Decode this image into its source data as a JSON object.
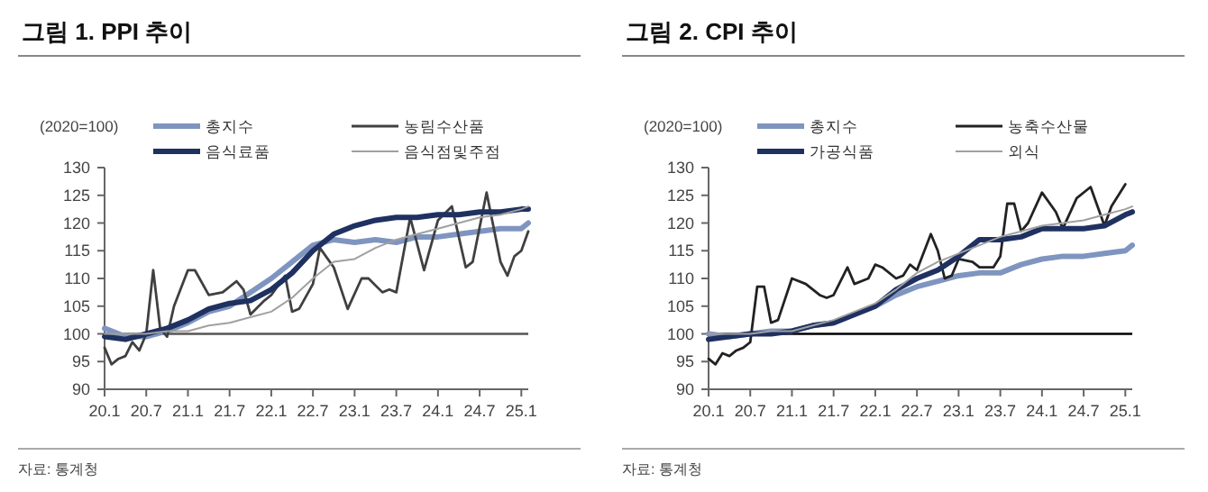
{
  "chart_data": [
    {
      "type": "line",
      "title": "그림 1. PPI 추이",
      "ylabel": "(2020=100)",
      "annotations": [
        "자료: 통계청"
      ],
      "legend": "top",
      "grid": false,
      "xlim": [
        "2020-01",
        "2025-02"
      ],
      "ylim": [
        90,
        130
      ],
      "yticks": [
        90,
        95,
        100,
        105,
        110,
        115,
        120,
        125,
        130
      ],
      "xticks": [
        {
          "value": "2020-01",
          "label": "20.1"
        },
        {
          "value": "2020-07",
          "label": "20.7"
        },
        {
          "value": "2021-01",
          "label": "21.1"
        },
        {
          "value": "2021-07",
          "label": "21.7"
        },
        {
          "value": "2022-01",
          "label": "22.1"
        },
        {
          "value": "2022-07",
          "label": "22.7"
        },
        {
          "value": "2023-01",
          "label": "23.1"
        },
        {
          "value": "2023-07",
          "label": "23.7"
        },
        {
          "value": "2024-01",
          "label": "24.1"
        },
        {
          "value": "2024-07",
          "label": "24.7"
        },
        {
          "value": "2025-01",
          "label": "25.1"
        }
      ],
      "ref_lines": [
        {
          "axis": "y",
          "value": 100,
          "color": "#555555"
        }
      ],
      "series": [
        {
          "name": "총지수",
          "color": "#7f95c0",
          "x": [
            "2020-01",
            "2020-04",
            "2020-07",
            "2020-10",
            "2021-01",
            "2021-04",
            "2021-07",
            "2021-10",
            "2022-01",
            "2022-04",
            "2022-07",
            "2022-10",
            "2023-01",
            "2023-04",
            "2023-07",
            "2023-10",
            "2024-01",
            "2024-04",
            "2024-07",
            "2024-10",
            "2025-01",
            "2025-02"
          ],
          "values": [
            101,
            99.5,
            99.5,
            100.5,
            102,
            104,
            105,
            107.5,
            110,
            113,
            116,
            117,
            116.5,
            117,
            116.5,
            117.5,
            117.5,
            118,
            118.5,
            119,
            119,
            120
          ]
        },
        {
          "name": "농림수산품",
          "color": "#404040",
          "x": [
            "2020-01",
            "2020-02",
            "2020-03",
            "2020-04",
            "2020-05",
            "2020-06",
            "2020-07",
            "2020-08",
            "2020-09",
            "2020-10",
            "2020-11",
            "2021-01",
            "2021-02",
            "2021-04",
            "2021-06",
            "2021-08",
            "2021-09",
            "2021-10",
            "2021-12",
            "2022-01",
            "2022-03",
            "2022-04",
            "2022-05",
            "2022-07",
            "2022-08",
            "2022-10",
            "2022-12",
            "2023-02",
            "2023-03",
            "2023-05",
            "2023-06",
            "2023-07",
            "2023-09",
            "2023-11",
            "2024-01",
            "2024-03",
            "2024-05",
            "2024-06",
            "2024-08",
            "2024-10",
            "2024-11",
            "2024-12",
            "2025-01",
            "2025-02"
          ],
          "values": [
            97.5,
            94.5,
            95.5,
            96,
            98.5,
            97,
            100,
            111.5,
            101,
            99.5,
            105,
            111.5,
            111.5,
            107,
            107.5,
            109.5,
            108,
            103.5,
            106,
            107,
            110.5,
            104,
            104.5,
            109,
            115.5,
            112,
            104.5,
            110,
            110,
            107.5,
            108,
            107.5,
            121,
            111.5,
            120.5,
            123,
            112,
            113,
            125.5,
            113,
            110.5,
            114,
            115,
            118.5
          ]
        },
        {
          "name": "음식료품",
          "color": "#1f3160",
          "x": [
            "2020-01",
            "2020-04",
            "2020-07",
            "2020-10",
            "2021-01",
            "2021-04",
            "2021-07",
            "2021-10",
            "2022-01",
            "2022-04",
            "2022-07",
            "2022-10",
            "2023-01",
            "2023-04",
            "2023-07",
            "2023-10",
            "2024-01",
            "2024-04",
            "2024-07",
            "2024-10",
            "2025-01",
            "2025-02"
          ],
          "values": [
            99.5,
            99,
            100,
            101,
            102.5,
            104.5,
            105.5,
            106,
            108,
            111,
            115,
            118,
            119.5,
            120.5,
            121,
            121,
            121.5,
            121.5,
            122,
            122,
            122.5,
            122.5
          ]
        },
        {
          "name": "음식점및주점",
          "color": "#a0a0a0",
          "x": [
            "2020-01",
            "2020-04",
            "2020-07",
            "2020-10",
            "2021-01",
            "2021-04",
            "2021-07",
            "2021-10",
            "2022-01",
            "2022-04",
            "2022-07",
            "2022-10",
            "2023-01",
            "2023-04",
            "2023-07",
            "2023-10",
            "2024-01",
            "2024-04",
            "2024-07",
            "2024-10",
            "2025-01",
            "2025-02"
          ],
          "values": [
            100,
            100,
            100,
            100.5,
            100.5,
            101.5,
            102,
            103,
            104,
            106.5,
            110,
            113,
            113.5,
            115.5,
            117,
            118,
            119,
            120,
            121,
            121.5,
            122.5,
            123
          ]
        }
      ]
    },
    {
      "type": "line",
      "title": "그림 2. CPI 추이",
      "ylabel": "(2020=100)",
      "annotations": [
        "자료: 통계청"
      ],
      "legend": "top",
      "grid": false,
      "xlim": [
        "2020-01",
        "2025-02"
      ],
      "ylim": [
        90,
        130
      ],
      "yticks": [
        90,
        95,
        100,
        105,
        110,
        115,
        120,
        125,
        130
      ],
      "xticks": [
        {
          "value": "2020-01",
          "label": "20.1"
        },
        {
          "value": "2020-07",
          "label": "20.7"
        },
        {
          "value": "2021-01",
          "label": "21.1"
        },
        {
          "value": "2021-07",
          "label": "21.7"
        },
        {
          "value": "2022-01",
          "label": "22.1"
        },
        {
          "value": "2022-07",
          "label": "22.7"
        },
        {
          "value": "2023-01",
          "label": "23.1"
        },
        {
          "value": "2023-07",
          "label": "23.7"
        },
        {
          "value": "2024-01",
          "label": "24.1"
        },
        {
          "value": "2024-07",
          "label": "24.7"
        },
        {
          "value": "2025-01",
          "label": "25.1"
        }
      ],
      "ref_lines": [
        {
          "axis": "y",
          "value": 100,
          "color": "#000000"
        }
      ],
      "series": [
        {
          "name": "총지수",
          "color": "#7f95c0",
          "x": [
            "2020-01",
            "2020-04",
            "2020-07",
            "2020-10",
            "2021-01",
            "2021-04",
            "2021-07",
            "2021-10",
            "2022-01",
            "2022-04",
            "2022-07",
            "2022-10",
            "2023-01",
            "2023-04",
            "2023-07",
            "2023-10",
            "2024-01",
            "2024-04",
            "2024-07",
            "2024-10",
            "2025-01",
            "2025-02"
          ],
          "values": [
            100,
            99.5,
            100,
            100.5,
            100.5,
            101.5,
            102,
            103.5,
            105,
            107,
            108.5,
            109.5,
            110.5,
            111,
            111,
            112.5,
            113.5,
            114,
            114,
            114.5,
            115,
            116
          ]
        },
        {
          "name": "농축수산물",
          "color": "#222222",
          "x": [
            "2020-01",
            "2020-02",
            "2020-03",
            "2020-04",
            "2020-05",
            "2020-06",
            "2020-07",
            "2020-08",
            "2020-09",
            "2020-10",
            "2020-11",
            "2021-01",
            "2021-03",
            "2021-05",
            "2021-06",
            "2021-07",
            "2021-09",
            "2021-10",
            "2021-12",
            "2022-01",
            "2022-02",
            "2022-04",
            "2022-05",
            "2022-06",
            "2022-07",
            "2022-09",
            "2022-10",
            "2022-11",
            "2022-12",
            "2023-01",
            "2023-03",
            "2023-04",
            "2023-06",
            "2023-07",
            "2023-08",
            "2023-09",
            "2023-10",
            "2023-11",
            "2024-01",
            "2024-03",
            "2024-04",
            "2024-06",
            "2024-08",
            "2024-09",
            "2024-10",
            "2024-11",
            "2024-12",
            "2025-01"
          ],
          "values": [
            95.5,
            94.5,
            96.5,
            96,
            97,
            97.5,
            98.5,
            108.5,
            108.5,
            102,
            102.5,
            110,
            109,
            107,
            106.5,
            107,
            112,
            109,
            110,
            112.5,
            112,
            110,
            110.5,
            112.5,
            111.5,
            118,
            115,
            110,
            110.5,
            113.5,
            113,
            112,
            112,
            114,
            123.5,
            123.5,
            118.5,
            120,
            125.5,
            122,
            119,
            124.5,
            126.5,
            123,
            119.5,
            123,
            125,
            127
          ]
        },
        {
          "name": "가공식품",
          "color": "#1f3160",
          "x": [
            "2020-01",
            "2020-04",
            "2020-07",
            "2020-10",
            "2021-01",
            "2021-04",
            "2021-07",
            "2021-10",
            "2022-01",
            "2022-04",
            "2022-07",
            "2022-10",
            "2023-01",
            "2023-04",
            "2023-07",
            "2023-10",
            "2024-01",
            "2024-04",
            "2024-07",
            "2024-10",
            "2025-01",
            "2025-02"
          ],
          "values": [
            99,
            99.5,
            100,
            100,
            100.5,
            101.5,
            102,
            103.5,
            105,
            108,
            110,
            111.5,
            114,
            117,
            117,
            117.5,
            119,
            119,
            119,
            119.5,
            121.5,
            122
          ]
        },
        {
          "name": "외식",
          "color": "#a0a0a0",
          "x": [
            "2020-01",
            "2020-04",
            "2020-07",
            "2020-10",
            "2021-01",
            "2021-04",
            "2021-07",
            "2021-10",
            "2022-01",
            "2022-04",
            "2022-07",
            "2022-10",
            "2023-01",
            "2023-04",
            "2023-07",
            "2023-10",
            "2024-01",
            "2024-04",
            "2024-07",
            "2024-10",
            "2025-01",
            "2025-02"
          ],
          "values": [
            100,
            100,
            100,
            100.5,
            100.5,
            101.5,
            102.5,
            104,
            105.5,
            108,
            111,
            113,
            114.5,
            116,
            117.5,
            118.5,
            119.5,
            120,
            120.5,
            121.5,
            122.5,
            123
          ]
        }
      ]
    }
  ]
}
